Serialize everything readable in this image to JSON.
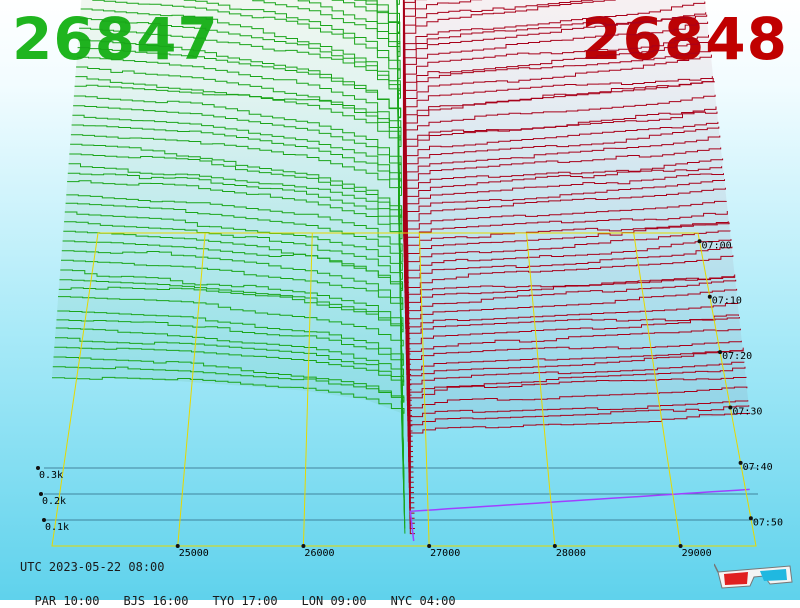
{
  "header": {
    "bid_price": "26847",
    "ask_price": "26848",
    "bid_color": "#1fb51f",
    "ask_color": "#c00000"
  },
  "footer": {
    "utc": "UTC 2023-05-22 08:00",
    "cities": [
      {
        "label": "PAR 10:00"
      },
      {
        "label": "BJS 16:00"
      },
      {
        "label": "TYO 17:00"
      },
      {
        "label": "LON 09:00"
      },
      {
        "label": "NYC 04:00"
      }
    ]
  },
  "chart_data": {
    "type": "area",
    "x_ticks": [
      "25000",
      "26000",
      "27000",
      "28000",
      "29000"
    ],
    "z_ticks": [
      "0.1k",
      "0.2k",
      "0.3k"
    ],
    "time_ticks": [
      "07:00",
      "07:10",
      "07:20",
      "07:30",
      "07:40",
      "07:50"
    ],
    "mid_price": 26847.5,
    "xlim": [
      24000,
      29600
    ],
    "series": [
      {
        "side": "bid",
        "color": "#1aa51a"
      },
      {
        "side": "ask",
        "color": "#a8001a"
      }
    ],
    "bid_depth_profile": {
      "x": [
        24000,
        25000,
        26000,
        26500,
        26800
      ],
      "depth": [
        0.36,
        0.35,
        0.33,
        0.31,
        0.28
      ]
    },
    "ask_depth_profile": {
      "x": [
        26850,
        27000,
        28000,
        29000,
        29600
      ],
      "depth": [
        0.24,
        0.25,
        0.26,
        0.27,
        0.28
      ]
    },
    "current_depth_color": "#a040ff",
    "grid_color": "#e6d800"
  },
  "icons": {
    "glasses": "3d-glasses-icon"
  }
}
